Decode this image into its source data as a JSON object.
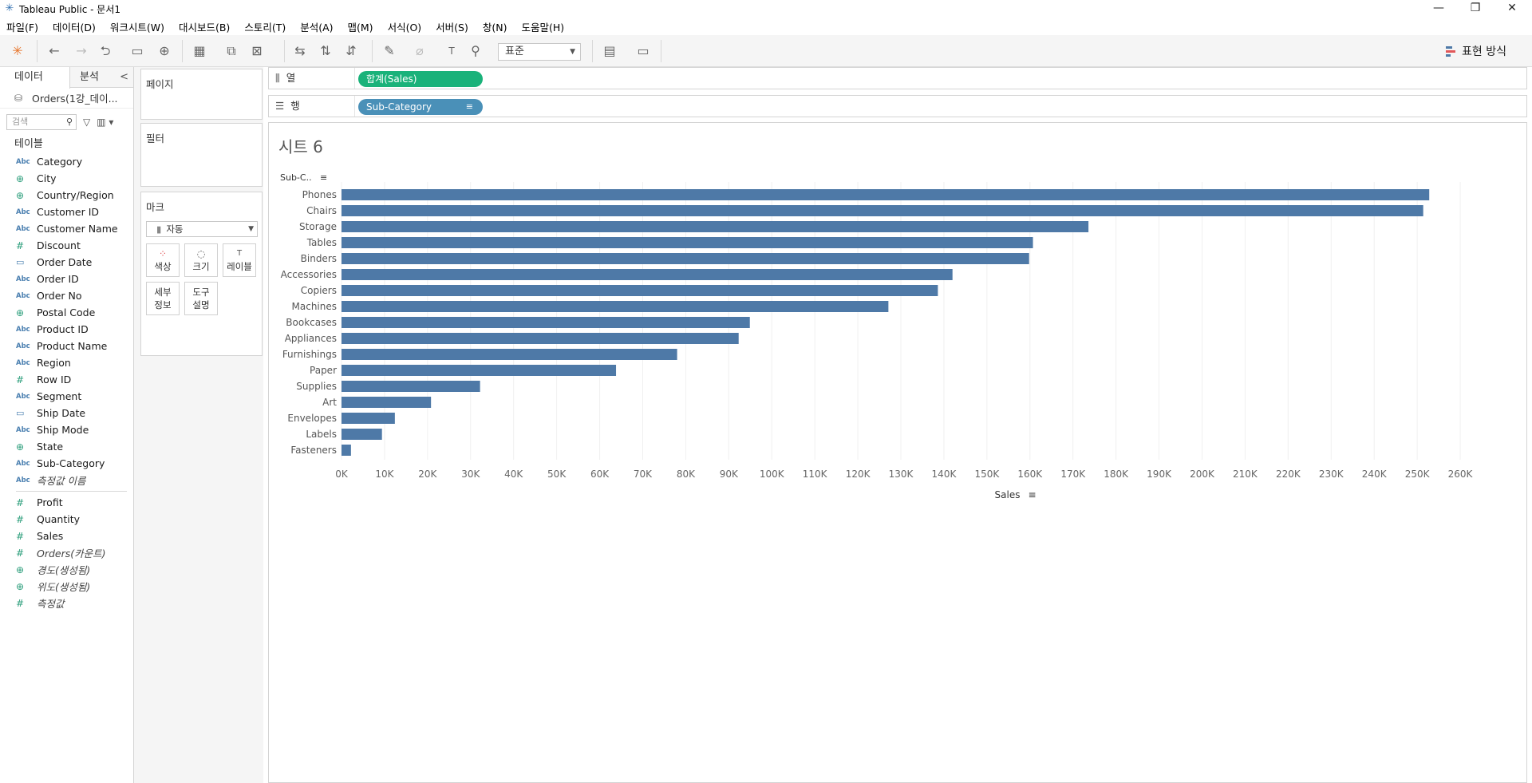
{
  "window": {
    "title": "Tableau Public - 문서1",
    "minimize": "—",
    "restore": "❐",
    "close": "✕"
  },
  "menu": [
    "파일(F)",
    "데이터(D)",
    "워크시트(W)",
    "대시보드(B)",
    "스토리(T)",
    "분석(A)",
    "맵(M)",
    "서식(O)",
    "서버(S)",
    "창(N)",
    "도움말(H)"
  ],
  "toolbar": {
    "fit": "표준",
    "show_me": "표현 방식"
  },
  "data_pane": {
    "tab_data": "데이터",
    "tab_analysis": "분석",
    "datasource": "Orders(1강_데이...",
    "search_placeholder": "검색",
    "tables_label": "테이블",
    "dimensions": [
      {
        "type": "abc",
        "label": "Category"
      },
      {
        "type": "geo",
        "label": "City"
      },
      {
        "type": "geo",
        "label": "Country/Region"
      },
      {
        "type": "abc",
        "label": "Customer ID"
      },
      {
        "type": "abc",
        "label": "Customer Name"
      },
      {
        "type": "num",
        "label": "Discount"
      },
      {
        "type": "date",
        "label": "Order Date"
      },
      {
        "type": "abc",
        "label": "Order ID"
      },
      {
        "type": "abc",
        "label": "Order No"
      },
      {
        "type": "geo",
        "label": "Postal Code"
      },
      {
        "type": "abc",
        "label": "Product ID"
      },
      {
        "type": "abc",
        "label": "Product Name"
      },
      {
        "type": "abc",
        "label": "Region"
      },
      {
        "type": "num",
        "label": "Row ID"
      },
      {
        "type": "abc",
        "label": "Segment"
      },
      {
        "type": "date",
        "label": "Ship Date"
      },
      {
        "type": "abc",
        "label": "Ship Mode"
      },
      {
        "type": "geo",
        "label": "State"
      },
      {
        "type": "abc",
        "label": "Sub-Category"
      },
      {
        "type": "abc",
        "label": "측정값 이름",
        "italic": true
      }
    ],
    "measures": [
      {
        "type": "num",
        "label": "Profit"
      },
      {
        "type": "num",
        "label": "Quantity"
      },
      {
        "type": "num",
        "label": "Sales"
      },
      {
        "type": "num",
        "label": "Orders(카운트)",
        "italic": true
      },
      {
        "type": "geo",
        "label": "경도(생성됨)",
        "italic": true
      },
      {
        "type": "geo",
        "label": "위도(생성됨)",
        "italic": true
      },
      {
        "type": "num",
        "label": "측정값",
        "italic": true
      }
    ]
  },
  "cards": {
    "pages": "페이지",
    "filters": "필터",
    "marks": "마크",
    "mark_type": "자동",
    "color": "색상",
    "size": "크기",
    "label": "레이블",
    "detail_1": "세부",
    "detail_2": "정보",
    "tooltip_1": "도구",
    "tooltip_2": "설명"
  },
  "shelves": {
    "columns_label": "열",
    "columns_pill": "합계(Sales)",
    "rows_label": "행",
    "rows_pill": "Sub-Category"
  },
  "sheet": {
    "title": "시트 6"
  },
  "chart_data": {
    "type": "bar",
    "orientation": "horizontal",
    "title": "",
    "ylabel": "Sub-C..",
    "xlabel": "Sales",
    "xlim": [
      0,
      265000
    ],
    "x_ticks": [
      "0K",
      "10K",
      "20K",
      "30K",
      "40K",
      "50K",
      "60K",
      "70K",
      "80K",
      "90K",
      "100K",
      "110K",
      "120K",
      "130K",
      "140K",
      "150K",
      "160K",
      "170K",
      "180K",
      "190K",
      "200K",
      "210K",
      "220K",
      "230K",
      "240K",
      "250K",
      "260K"
    ],
    "grid": "vertical",
    "bar_color": "#4e79a7",
    "categories": [
      "Phones",
      "Chairs",
      "Storage",
      "Tables",
      "Binders",
      "Accessories",
      "Copiers",
      "Machines",
      "Bookcases",
      "Appliances",
      "Furnishings",
      "Paper",
      "Supplies",
      "Art",
      "Envelopes",
      "Labels",
      "Fasteners"
    ],
    "values": [
      252800,
      251400,
      173600,
      160700,
      159800,
      142000,
      138600,
      127100,
      94900,
      92300,
      78000,
      63800,
      32200,
      20800,
      12400,
      9400,
      2200
    ]
  }
}
